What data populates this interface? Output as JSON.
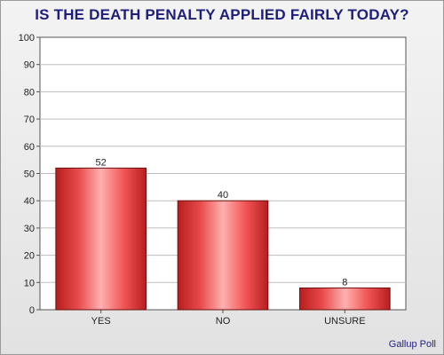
{
  "chart_data": {
    "type": "bar",
    "title": "IS THE DEATH PENALTY APPLIED FAIRLY TODAY?",
    "categories": [
      "YES",
      "NO",
      "UNSURE"
    ],
    "values": [
      52,
      40,
      8
    ],
    "ylim": [
      0,
      100
    ],
    "yticks": [
      0,
      10,
      20,
      30,
      40,
      50,
      60,
      70,
      80,
      90,
      100
    ],
    "grid": true,
    "bar_color": "#e84a4a",
    "source": "Gallup Poll"
  }
}
